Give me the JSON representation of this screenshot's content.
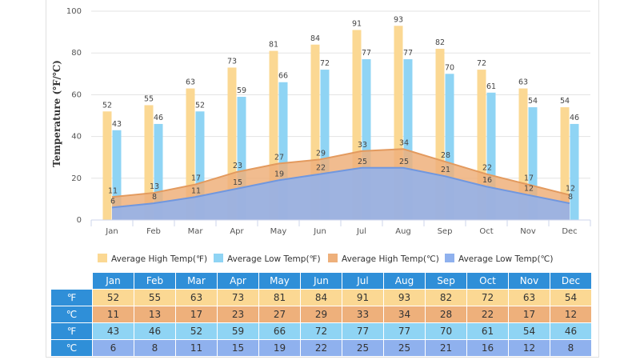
{
  "chart_data": {
    "type": "bar",
    "title": "",
    "xlabel": "",
    "ylabel": "Temperature (℉/℃)",
    "ylim": [
      0,
      100
    ],
    "yticks": [
      0,
      20,
      40,
      60,
      80,
      100
    ],
    "categories": [
      "Jan",
      "Feb",
      "Mar",
      "Apr",
      "May",
      "Jun",
      "Jul",
      "Aug",
      "Sep",
      "Oct",
      "Nov",
      "Dec"
    ],
    "series": [
      {
        "name": "Average High Temp(℉)",
        "kind": "bar",
        "color": "#fbd893",
        "values": [
          52,
          55,
          63,
          73,
          81,
          84,
          91,
          93,
          82,
          72,
          63,
          54
        ]
      },
      {
        "name": "Average Low Temp(℉)",
        "kind": "bar",
        "color": "#8fd4f4",
        "values": [
          43,
          46,
          52,
          59,
          66,
          72,
          77,
          77,
          70,
          61,
          54,
          46
        ]
      },
      {
        "name": "Average High Temp(℃)",
        "kind": "area",
        "color": "#eeb07b",
        "values": [
          11,
          13,
          17,
          23,
          27,
          29,
          33,
          34,
          28,
          22,
          17,
          12
        ]
      },
      {
        "name": "Average Low Temp(℃)",
        "kind": "area",
        "color": "#8fb1ee",
        "values": [
          6,
          8,
          11,
          15,
          19,
          22,
          25,
          25,
          21,
          16,
          12,
          8
        ]
      }
    ],
    "legend_position": "bottom"
  },
  "table": {
    "months": [
      "Jan",
      "Feb",
      "Mar",
      "Apr",
      "May",
      "Jun",
      "Jul",
      "Aug",
      "Sep",
      "Oct",
      "Nov",
      "Dec"
    ],
    "rows": [
      {
        "unit": "℉",
        "values": [
          52,
          55,
          63,
          73,
          81,
          84,
          91,
          93,
          82,
          72,
          63,
          54
        ]
      },
      {
        "unit": "℃",
        "values": [
          11,
          13,
          17,
          23,
          27,
          29,
          33,
          34,
          28,
          22,
          17,
          12
        ]
      },
      {
        "unit": "℉",
        "values": [
          43,
          46,
          52,
          59,
          66,
          72,
          77,
          77,
          70,
          61,
          54,
          46
        ]
      },
      {
        "unit": "℃",
        "values": [
          6,
          8,
          11,
          15,
          19,
          22,
          25,
          25,
          21,
          16,
          12,
          8
        ]
      }
    ]
  }
}
